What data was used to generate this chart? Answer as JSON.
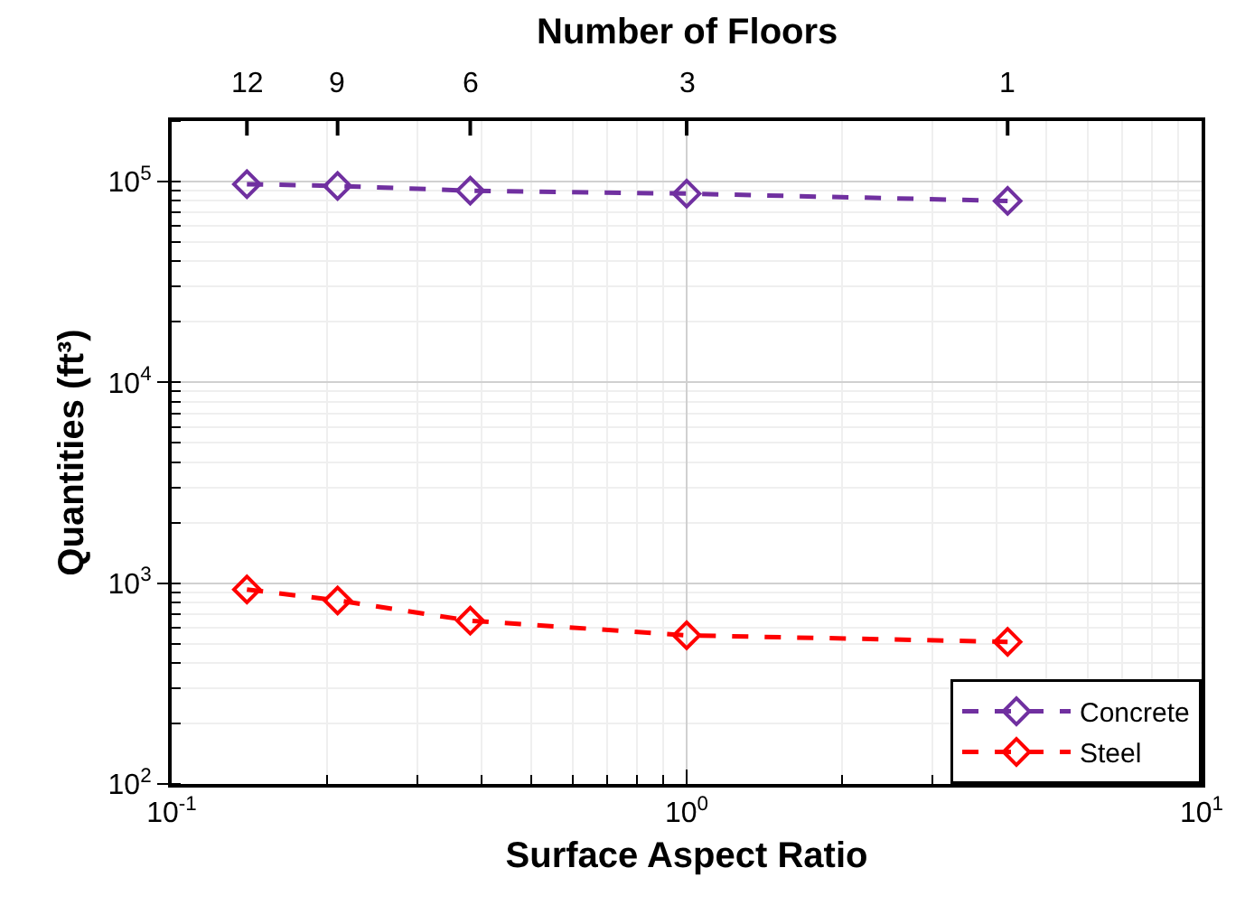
{
  "chart_data": {
    "type": "line",
    "xlabel": "Surface Aspect Ratio",
    "ylabel": "Quantities (ft³)",
    "x2label": "Number of Floors",
    "x": [
      0.14,
      0.21,
      0.38,
      1.0,
      4.2
    ],
    "series": [
      {
        "name": "Concrete",
        "color": "#7030a0",
        "values": [
          97000,
          95000,
          90000,
          87000,
          80000
        ]
      },
      {
        "name": "Steel",
        "color": "#ff0000",
        "values": [
          930,
          820,
          650,
          550,
          510
        ]
      }
    ],
    "log": "xy",
    "xlim": [
      0.1,
      10
    ],
    "ylim": [
      100,
      200000
    ],
    "xticks": [
      {
        "value": 0.1,
        "label": "10$^{-1}$"
      },
      {
        "value": 1,
        "label": "10$^{0}$"
      },
      {
        "value": 10,
        "label": "10$^{1}$"
      }
    ],
    "yticks": [
      {
        "value": 100,
        "label": "10$^{2}$"
      },
      {
        "value": 1000,
        "label": "10$^{3}$"
      },
      {
        "value": 10000,
        "label": "10$^{4}$"
      },
      {
        "value": 100000,
        "label": "10$^{5}$"
      }
    ],
    "annotations": [
      {
        "text": "12",
        "x": 0.14
      },
      {
        "text": "9",
        "x": 0.21
      },
      {
        "text": "6",
        "x": 0.38
      },
      {
        "text": "3",
        "x": 1.0
      },
      {
        "text": "1",
        "x": 4.2
      }
    ],
    "grid": true,
    "legend": "bottom right",
    "marker": "diamond",
    "line_style": "dashed"
  }
}
